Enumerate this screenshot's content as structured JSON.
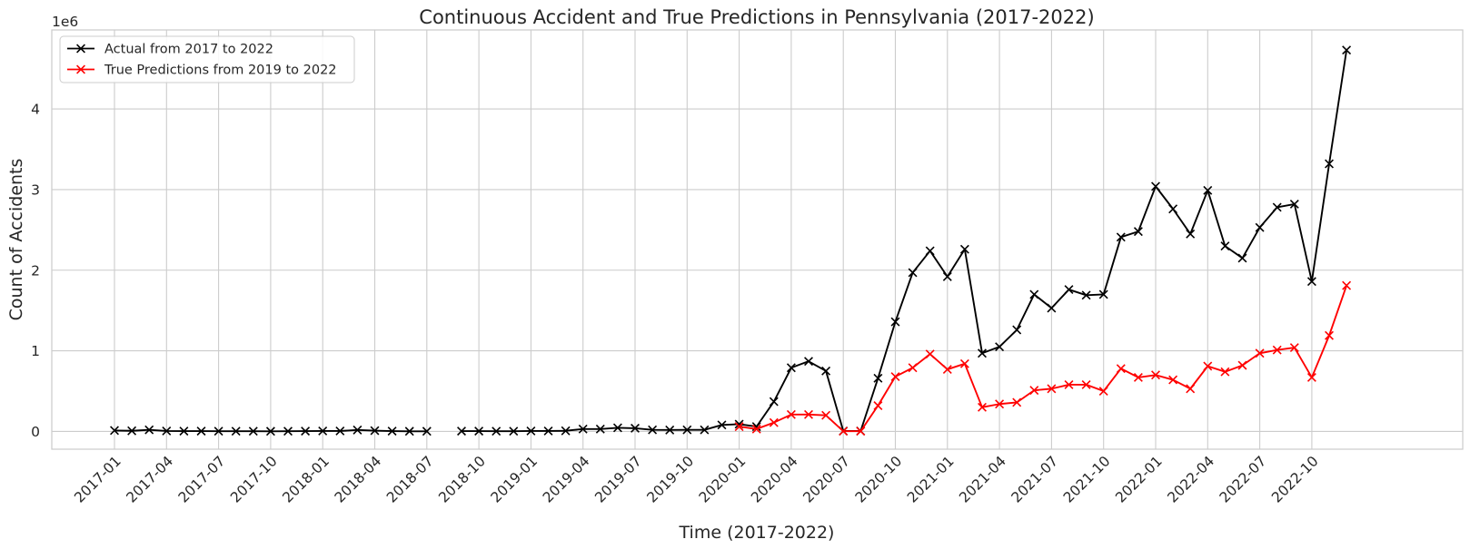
{
  "chart_data": {
    "type": "line",
    "title": "Continuous Accident and True Predictions in Pennsylvania (2017-2022)",
    "xlabel": "Time (2017-2022)",
    "ylabel": "Count of Accidents",
    "y_multiplier_label": "1e6",
    "ylim": [
      -0.22,
      4.98
    ],
    "y_ticks": [
      0,
      1,
      2,
      3,
      4
    ],
    "y_tick_labels": [
      "0",
      "1",
      "2",
      "3",
      "4"
    ],
    "x_ticks": [
      "2017-01",
      "2017-04",
      "2017-07",
      "2017-10",
      "2018-01",
      "2018-04",
      "2018-07",
      "2018-10",
      "2019-01",
      "2019-04",
      "2019-07",
      "2019-10",
      "2020-01",
      "2020-04",
      "2020-07",
      "2020-10",
      "2021-01",
      "2021-04",
      "2021-07",
      "2021-10",
      "2022-01",
      "2022-04",
      "2022-07",
      "2022-10"
    ],
    "grid": true,
    "legend_position": "top-left",
    "series": [
      {
        "name": "Actual from 2017 to 2022",
        "color": "#000000",
        "marker": "x",
        "points": [
          [
            "2017-01",
            0.012
          ],
          [
            "2017-02",
            0.008
          ],
          [
            "2017-03",
            0.02
          ],
          [
            "2017-04",
            0.006
          ],
          [
            "2017-05",
            0.004
          ],
          [
            "2017-06",
            0.004
          ],
          [
            "2017-07",
            0.003
          ],
          [
            "2017-08",
            0.003
          ],
          [
            "2017-09",
            0.003
          ],
          [
            "2017-10",
            0.002
          ],
          [
            "2017-11",
            0.003
          ],
          [
            "2017-12",
            0.004
          ],
          [
            "2018-01",
            0.006
          ],
          [
            "2018-02",
            0.006
          ],
          [
            "2018-03",
            0.018
          ],
          [
            "2018-04",
            0.01
          ],
          [
            "2018-05",
            0.004
          ],
          [
            "2018-06",
            0.002
          ],
          [
            "2018-07",
            0.002
          ],
          [
            "2018-09",
            0.004
          ],
          [
            "2018-10",
            0.004
          ],
          [
            "2018-11",
            0.003
          ],
          [
            "2018-12",
            0.003
          ],
          [
            "2019-01",
            0.006
          ],
          [
            "2019-02",
            0.006
          ],
          [
            "2019-03",
            0.008
          ],
          [
            "2019-04",
            0.03
          ],
          [
            "2019-05",
            0.03
          ],
          [
            "2019-06",
            0.045
          ],
          [
            "2019-07",
            0.04
          ],
          [
            "2019-08",
            0.02
          ],
          [
            "2019-09",
            0.018
          ],
          [
            "2019-10",
            0.02
          ],
          [
            "2019-11",
            0.02
          ],
          [
            "2019-12",
            0.08
          ],
          [
            "2020-01",
            0.09
          ],
          [
            "2020-02",
            0.06
          ],
          [
            "2020-03",
            0.37
          ],
          [
            "2020-04",
            0.79
          ],
          [
            "2020-05",
            0.87
          ],
          [
            "2020-06",
            0.75
          ],
          [
            "2020-07",
            0.005
          ],
          [
            "2020-08",
            0.005
          ],
          [
            "2020-09",
            0.66
          ],
          [
            "2020-10",
            1.36
          ],
          [
            "2020-11",
            1.97
          ],
          [
            "2020-12",
            2.24
          ],
          [
            "2021-01",
            1.92
          ],
          [
            "2021-02",
            2.26
          ],
          [
            "2021-03",
            0.97
          ],
          [
            "2021-04",
            1.05
          ],
          [
            "2021-05",
            1.26
          ],
          [
            "2021-06",
            1.7
          ],
          [
            "2021-07",
            1.53
          ],
          [
            "2021-08",
            1.76
          ],
          [
            "2021-09",
            1.69
          ],
          [
            "2021-10",
            1.7
          ],
          [
            "2021-11",
            2.41
          ],
          [
            "2021-12",
            2.48
          ],
          [
            "2022-01",
            3.04
          ],
          [
            "2022-02",
            2.76
          ],
          [
            "2022-03",
            2.45
          ],
          [
            "2022-04",
            2.99
          ],
          [
            "2022-05",
            2.3
          ],
          [
            "2022-06",
            2.15
          ],
          [
            "2022-07",
            2.53
          ],
          [
            "2022-08",
            2.78
          ],
          [
            "2022-09",
            2.82
          ],
          [
            "2022-10",
            1.86
          ],
          [
            "2022-11",
            3.32
          ],
          [
            "2022-12",
            4.73
          ]
        ]
      },
      {
        "name": "True Predictions from 2019 to 2022",
        "color": "#ff0000",
        "marker": "x",
        "points": [
          [
            "2020-01",
            0.06
          ],
          [
            "2020-02",
            0.03
          ],
          [
            "2020-03",
            0.11
          ],
          [
            "2020-04",
            0.21
          ],
          [
            "2020-05",
            0.21
          ],
          [
            "2020-06",
            0.2
          ],
          [
            "2020-07",
            0.003
          ],
          [
            "2020-08",
            0.003
          ],
          [
            "2020-09",
            0.32
          ],
          [
            "2020-10",
            0.68
          ],
          [
            "2020-11",
            0.79
          ],
          [
            "2020-12",
            0.96
          ],
          [
            "2021-01",
            0.77
          ],
          [
            "2021-02",
            0.84
          ],
          [
            "2021-03",
            0.3
          ],
          [
            "2021-04",
            0.34
          ],
          [
            "2021-05",
            0.36
          ],
          [
            "2021-06",
            0.51
          ],
          [
            "2021-07",
            0.53
          ],
          [
            "2021-08",
            0.58
          ],
          [
            "2021-09",
            0.58
          ],
          [
            "2021-10",
            0.5
          ],
          [
            "2021-11",
            0.78
          ],
          [
            "2021-12",
            0.67
          ],
          [
            "2022-01",
            0.7
          ],
          [
            "2022-02",
            0.64
          ],
          [
            "2022-03",
            0.53
          ],
          [
            "2022-04",
            0.81
          ],
          [
            "2022-05",
            0.74
          ],
          [
            "2022-06",
            0.82
          ],
          [
            "2022-07",
            0.97
          ],
          [
            "2022-08",
            1.01
          ],
          [
            "2022-09",
            1.04
          ],
          [
            "2022-10",
            0.67
          ],
          [
            "2022-11",
            1.19
          ],
          [
            "2022-12",
            1.81
          ]
        ]
      }
    ]
  }
}
